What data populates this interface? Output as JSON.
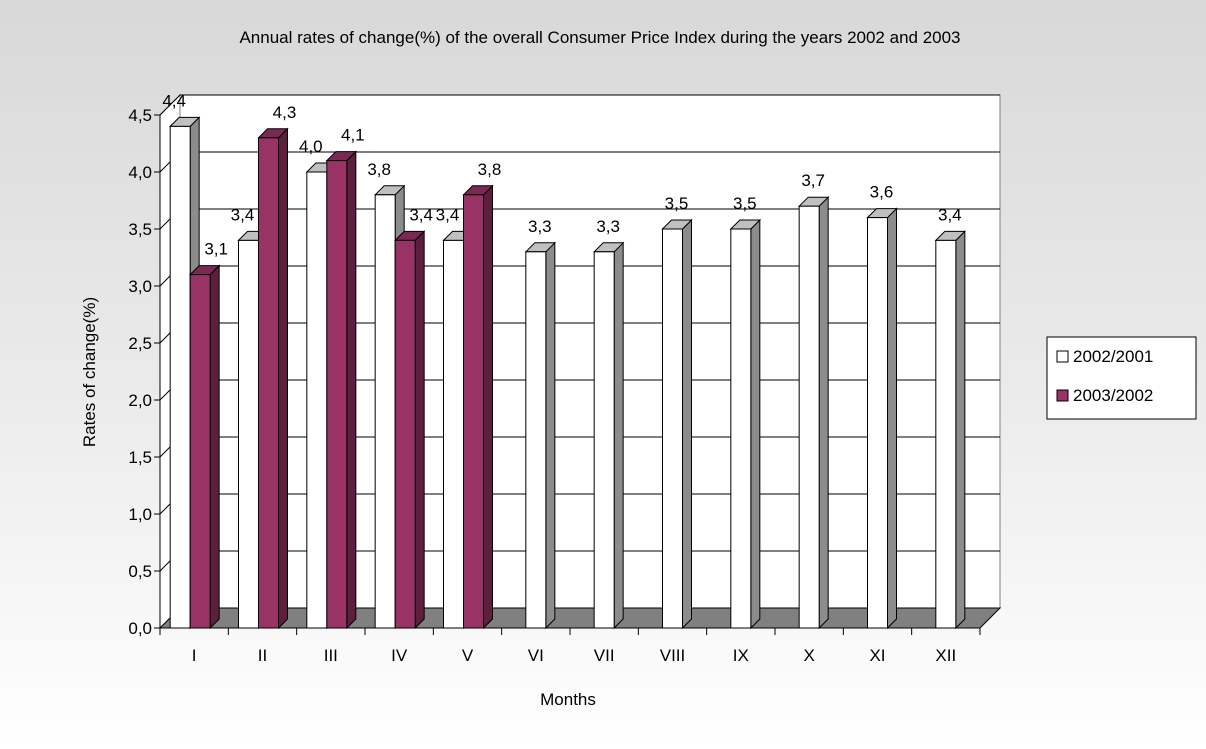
{
  "chart_data": {
    "type": "bar",
    "title": "Annual rates of change(%) of the overall Consumer Price Index during the years 2002 and 2003",
    "xlabel": "Months",
    "ylabel": "Rates of change(%)",
    "categories": [
      "I",
      "II",
      "III",
      "IV",
      "V",
      "VI",
      "VII",
      "VIII",
      "IX",
      "X",
      "XI",
      "XII"
    ],
    "series": [
      {
        "name": "2002/2001",
        "values": [
          4.4,
          3.4,
          4.0,
          3.8,
          3.4,
          3.3,
          3.3,
          3.5,
          3.5,
          3.7,
          3.6,
          3.4
        ],
        "labels": [
          "4,4",
          "3,4",
          "4,0",
          "3,8",
          "3,4",
          "3,3",
          "3,3",
          "3,5",
          "3,5",
          "3,7",
          "3,6",
          "3,4"
        ],
        "color": "#ffffff"
      },
      {
        "name": "2003/2002",
        "values": [
          3.1,
          4.3,
          4.1,
          3.4,
          3.8,
          null,
          null,
          null,
          null,
          null,
          null,
          null
        ],
        "labels": [
          "3,1",
          "4,3",
          "4,1",
          "3,4",
          "3,8",
          null,
          null,
          null,
          null,
          null,
          null,
          null
        ],
        "color": "#993366"
      }
    ],
    "ylim": [
      0,
      4.5
    ],
    "yticks": [
      "0,0",
      "0,5",
      "1,0",
      "1,5",
      "2,0",
      "2,5",
      "3,0",
      "3,5",
      "4,0",
      "4,5"
    ],
    "grid": true,
    "legend_position": "right"
  }
}
